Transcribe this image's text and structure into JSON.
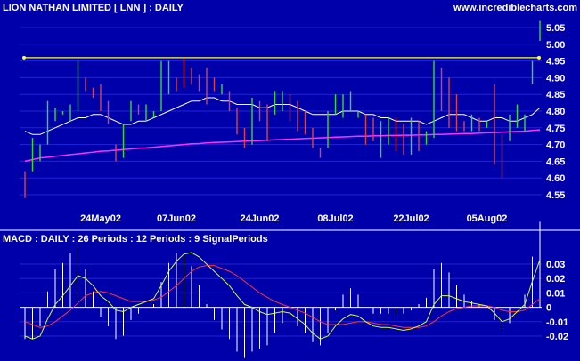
{
  "header": {
    "title": "LION NATHAN LIMITED  [ LNN ] : DAILY",
    "site": "www.incrediblecharts.com"
  },
  "colors": {
    "background": "#0000aa",
    "grid": "#2222d8",
    "up_bar": "#33dd33",
    "down_bar": "#dd4444",
    "ma_short": "#ffffff",
    "ma_long": "#ff33ff",
    "resistance": "#ffff33",
    "macd_line": "#ccff33",
    "signal_line": "#ff3333",
    "histogram": "#ffffff",
    "text": "#ffffff"
  },
  "chart_data": [
    {
      "type": "ohlc",
      "ylim": [
        4.52,
        5.09
      ],
      "yticks": [
        "4.55",
        "4.60",
        "4.65",
        "4.70",
        "4.75",
        "4.80",
        "4.85",
        "4.90",
        "4.95",
        "5.00",
        "5.05"
      ],
      "xtick_labels": [
        {
          "label": "24May02",
          "index": 10
        },
        {
          "label": "07Jun02",
          "index": 20
        },
        {
          "label": "24Jun02",
          "index": 31
        },
        {
          "label": "08Jul02",
          "index": 41
        },
        {
          "label": "22Jul02",
          "index": 51
        },
        {
          "label": "05Aug02",
          "index": 61
        }
      ],
      "bars": [
        {
          "h": 4.62,
          "l": 4.54,
          "d": "down"
        },
        {
          "h": 4.72,
          "l": 4.62,
          "d": "up"
        },
        {
          "h": 4.7,
          "l": 4.65,
          "d": "up"
        },
        {
          "h": 4.83,
          "l": 4.7,
          "d": "up"
        },
        {
          "h": 4.81,
          "l": 4.77,
          "d": "up"
        },
        {
          "h": 4.8,
          "l": 4.79,
          "d": "up"
        },
        {
          "h": 4.82,
          "l": 4.77,
          "d": "up"
        },
        {
          "h": 4.95,
          "l": 4.8,
          "d": "up"
        },
        {
          "h": 4.9,
          "l": 4.86,
          "d": "down"
        },
        {
          "h": 4.87,
          "l": 4.84,
          "d": "down"
        },
        {
          "h": 4.88,
          "l": 4.8,
          "d": "down"
        },
        {
          "h": 4.83,
          "l": 4.76,
          "d": "down"
        },
        {
          "h": 4.7,
          "l": 4.65,
          "d": "down"
        },
        {
          "h": 4.76,
          "l": 4.66,
          "d": "up"
        },
        {
          "h": 4.83,
          "l": 4.77,
          "d": "up"
        },
        {
          "h": 4.82,
          "l": 4.79,
          "d": "down"
        },
        {
          "h": 4.82,
          "l": 4.77,
          "d": "up"
        },
        {
          "h": 4.8,
          "l": 4.78,
          "d": "up"
        },
        {
          "h": 4.95,
          "l": 4.8,
          "d": "up"
        },
        {
          "h": 4.95,
          "l": 4.85,
          "d": "up"
        },
        {
          "h": 4.9,
          "l": 4.86,
          "d": "down"
        },
        {
          "h": 4.96,
          "l": 4.87,
          "d": "down"
        },
        {
          "h": 4.93,
          "l": 4.88,
          "d": "down"
        },
        {
          "h": 4.91,
          "l": 4.86,
          "d": "down"
        },
        {
          "h": 4.93,
          "l": 4.82,
          "d": "down"
        },
        {
          "h": 4.9,
          "l": 4.86,
          "d": "down"
        },
        {
          "h": 4.88,
          "l": 4.85,
          "d": "up"
        },
        {
          "h": 4.86,
          "l": 4.8,
          "d": "down"
        },
        {
          "h": 4.81,
          "l": 4.73,
          "d": "down"
        },
        {
          "h": 4.75,
          "l": 4.69,
          "d": "down"
        },
        {
          "h": 4.84,
          "l": 4.7,
          "d": "up"
        },
        {
          "h": 4.83,
          "l": 4.77,
          "d": "down"
        },
        {
          "h": 4.82,
          "l": 4.71,
          "d": "down"
        },
        {
          "h": 4.86,
          "l": 4.79,
          "d": "up"
        },
        {
          "h": 4.86,
          "l": 4.8,
          "d": "up"
        },
        {
          "h": 4.85,
          "l": 4.77,
          "d": "down"
        },
        {
          "h": 4.83,
          "l": 4.74,
          "d": "down"
        },
        {
          "h": 4.8,
          "l": 4.73,
          "d": "down"
        },
        {
          "h": 4.75,
          "l": 4.69,
          "d": "down"
        },
        {
          "h": 4.69,
          "l": 4.66,
          "d": "down"
        },
        {
          "h": 4.8,
          "l": 4.69,
          "d": "up"
        },
        {
          "h": 4.85,
          "l": 4.79,
          "d": "up"
        },
        {
          "h": 4.85,
          "l": 4.78,
          "d": "up"
        },
        {
          "h": 4.86,
          "l": 4.8,
          "d": "up"
        },
        {
          "h": 4.8,
          "l": 4.78,
          "d": "up"
        },
        {
          "h": 4.79,
          "l": 4.7,
          "d": "down"
        },
        {
          "h": 4.78,
          "l": 4.71,
          "d": "down"
        },
        {
          "h": 4.77,
          "l": 4.66,
          "d": "up"
        },
        {
          "h": 4.78,
          "l": 4.7,
          "d": "up"
        },
        {
          "h": 4.78,
          "l": 4.68,
          "d": "down"
        },
        {
          "h": 4.76,
          "l": 4.67,
          "d": "down"
        },
        {
          "h": 4.78,
          "l": 4.67,
          "d": "up"
        },
        {
          "h": 4.77,
          "l": 4.68,
          "d": "down"
        },
        {
          "h": 4.74,
          "l": 4.7,
          "d": "up"
        },
        {
          "h": 4.95,
          "l": 4.72,
          "d": "up"
        },
        {
          "h": 4.93,
          "l": 4.8,
          "d": "down"
        },
        {
          "h": 4.9,
          "l": 4.75,
          "d": "down"
        },
        {
          "h": 4.85,
          "l": 4.74,
          "d": "down"
        },
        {
          "h": 4.77,
          "l": 4.74,
          "d": "down"
        },
        {
          "h": 4.79,
          "l": 4.74,
          "d": "up"
        },
        {
          "h": 4.78,
          "l": 4.74,
          "d": "down"
        },
        {
          "h": 4.77,
          "l": 4.75,
          "d": "up"
        },
        {
          "h": 4.88,
          "l": 4.64,
          "d": "down"
        },
        {
          "h": 4.73,
          "l": 4.6,
          "d": "down"
        },
        {
          "h": 4.79,
          "l": 4.71,
          "d": "up"
        },
        {
          "h": 4.82,
          "l": 4.75,
          "d": "up"
        },
        {
          "h": 4.79,
          "l": 4.74,
          "d": "up"
        },
        {
          "h": 4.95,
          "l": 4.88,
          "d": "up"
        },
        {
          "h": 5.07,
          "l": 5.01,
          "d": "up"
        }
      ],
      "ma_short": [
        4.74,
        4.73,
        4.73,
        4.74,
        4.75,
        4.76,
        4.77,
        4.78,
        4.78,
        4.79,
        4.79,
        4.78,
        4.77,
        4.76,
        4.76,
        4.77,
        4.77,
        4.78,
        4.79,
        4.8,
        4.81,
        4.82,
        4.83,
        4.83,
        4.84,
        4.84,
        4.83,
        4.83,
        4.82,
        4.82,
        4.82,
        4.81,
        4.81,
        4.82,
        4.82,
        4.82,
        4.81,
        4.8,
        4.79,
        4.79,
        4.79,
        4.79,
        4.8,
        4.8,
        4.8,
        4.79,
        4.79,
        4.78,
        4.78,
        4.77,
        4.77,
        4.77,
        4.77,
        4.76,
        4.77,
        4.78,
        4.79,
        4.79,
        4.79,
        4.78,
        4.77,
        4.77,
        4.78,
        4.78,
        4.77,
        4.77,
        4.78,
        4.79,
        4.81
      ],
      "ma_long": [
        4.65,
        4.655,
        4.66,
        4.662,
        4.665,
        4.667,
        4.67,
        4.672,
        4.675,
        4.677,
        4.68,
        4.681,
        4.683,
        4.685,
        4.687,
        4.689,
        4.69,
        4.692,
        4.694,
        4.696,
        4.698,
        4.7,
        4.702,
        4.703,
        4.705,
        4.706,
        4.707,
        4.708,
        4.709,
        4.71,
        4.711,
        4.712,
        4.713,
        4.714,
        4.715,
        4.716,
        4.717,
        4.718,
        4.719,
        4.72,
        4.721,
        4.722,
        4.723,
        4.724,
        4.725,
        4.725,
        4.726,
        4.726,
        4.727,
        4.727,
        4.728,
        4.728,
        4.729,
        4.729,
        4.73,
        4.73,
        4.731,
        4.732,
        4.733,
        4.733,
        4.734,
        4.735,
        4.736,
        4.737,
        4.738,
        4.739,
        4.74,
        4.742,
        4.744
      ],
      "resistance": 4.96
    },
    {
      "type": "macd",
      "title": "MACD : DAILY : 26 Periods : 12 Periods : 9 SignalPeriods",
      "ylim": [
        -0.028,
        0.042
      ],
      "yticks": [
        "-0.02",
        "-0.01",
        "0",
        "0.01",
        "0.02",
        "0.03"
      ],
      "macd": [
        -0.02,
        -0.022,
        -0.02,
        -0.008,
        0.002,
        0.008,
        0.015,
        0.022,
        0.02,
        0.015,
        0.008,
        0.004,
        -0.002,
        -0.003,
        0.0,
        0.002,
        0.004,
        0.006,
        0.015,
        0.025,
        0.032,
        0.037,
        0.038,
        0.035,
        0.03,
        0.025,
        0.02,
        0.015,
        0.008,
        0.002,
        0.0,
        -0.003,
        -0.005,
        -0.004,
        -0.003,
        -0.004,
        -0.008,
        -0.012,
        -0.018,
        -0.022,
        -0.02,
        -0.013,
        -0.008,
        -0.005,
        -0.006,
        -0.01,
        -0.013,
        -0.014,
        -0.014,
        -0.015,
        -0.016,
        -0.015,
        -0.013,
        -0.01,
        0.002,
        0.008,
        0.008,
        0.006,
        0.004,
        0.003,
        0.002,
        0.001,
        -0.004,
        -0.01,
        -0.008,
        -0.003,
        0.002,
        0.018,
        0.033
      ],
      "signal": [
        -0.01,
        -0.012,
        -0.014,
        -0.013,
        -0.01,
        -0.006,
        -0.002,
        0.003,
        0.008,
        0.01,
        0.011,
        0.01,
        0.008,
        0.006,
        0.004,
        0.004,
        0.004,
        0.005,
        0.007,
        0.011,
        0.015,
        0.02,
        0.025,
        0.028,
        0.029,
        0.029,
        0.027,
        0.025,
        0.022,
        0.018,
        0.014,
        0.01,
        0.007,
        0.004,
        0.002,
        0.0,
        -0.002,
        -0.004,
        -0.007,
        -0.01,
        -0.012,
        -0.012,
        -0.012,
        -0.011,
        -0.01,
        -0.01,
        -0.011,
        -0.012,
        -0.012,
        -0.013,
        -0.014,
        -0.014,
        -0.014,
        -0.013,
        -0.01,
        -0.006,
        -0.003,
        -0.001,
        0.0,
        0.001,
        0.001,
        0.001,
        0.0,
        -0.002,
        -0.003,
        -0.003,
        -0.002,
        0.002,
        0.006
      ]
    }
  ]
}
